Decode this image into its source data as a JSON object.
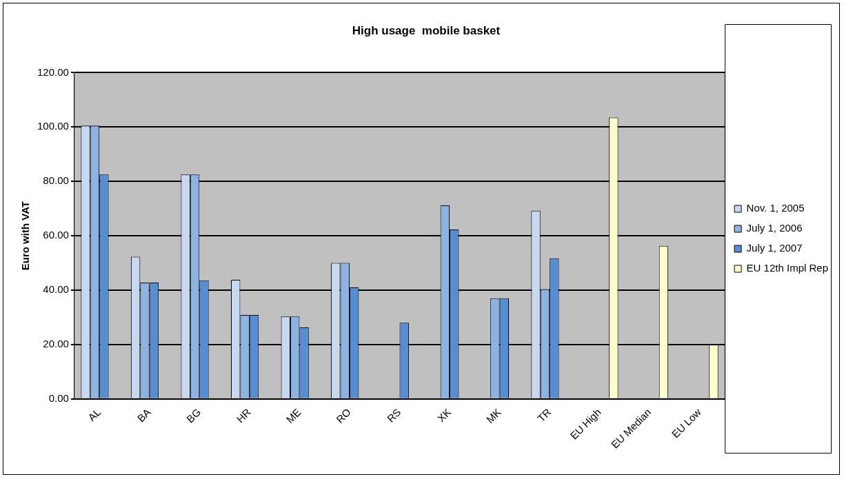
{
  "chart_data": {
    "type": "bar",
    "title": "High usage  mobile basket",
    "ylabel": "Euro with VAT",
    "categories": [
      "AL",
      "BA",
      "BG",
      "HR",
      "ME",
      "RO",
      "RS",
      "XK",
      "MK",
      "TR",
      "EU High",
      "EU Median",
      "EU Low"
    ],
    "series": [
      {
        "name": "Nov. 1, 2005",
        "color": "#c6d9f1",
        "values": [
          100.5,
          52.3,
          82.5,
          43.8,
          30.3,
          50,
          null,
          null,
          null,
          69.2,
          null,
          null,
          null
        ]
      },
      {
        "name": "July 1, 2006",
        "color": "#8db3e2",
        "values": [
          100.5,
          42.8,
          82.5,
          30.9,
          30.3,
          50,
          null,
          71.2,
          37,
          40.4,
          null,
          null,
          null
        ]
      },
      {
        "name": "July 1, 2007",
        "color": "#558ed5",
        "values": [
          82.5,
          42.8,
          43.6,
          30.9,
          26.3,
          41,
          28,
          62.3,
          37,
          51.7,
          null,
          null,
          null
        ]
      },
      {
        "name": "EU 12th Impl Rep",
        "color": "#ffffcc",
        "values": [
          null,
          null,
          null,
          null,
          null,
          null,
          null,
          null,
          null,
          null,
          103.5,
          56.3,
          20
        ]
      }
    ],
    "ylim": [
      0,
      120
    ],
    "yticks": [
      {
        "value": 0,
        "label": "0.00"
      },
      {
        "value": 20,
        "label": "20.00"
      },
      {
        "value": 40,
        "label": "40.00"
      },
      {
        "value": 60,
        "label": "60.00"
      },
      {
        "value": 80,
        "label": "80.00"
      },
      {
        "value": 100,
        "label": "100.00"
      },
      {
        "value": 120,
        "label": "120.00"
      }
    ],
    "grid": "y",
    "legend": "right"
  }
}
